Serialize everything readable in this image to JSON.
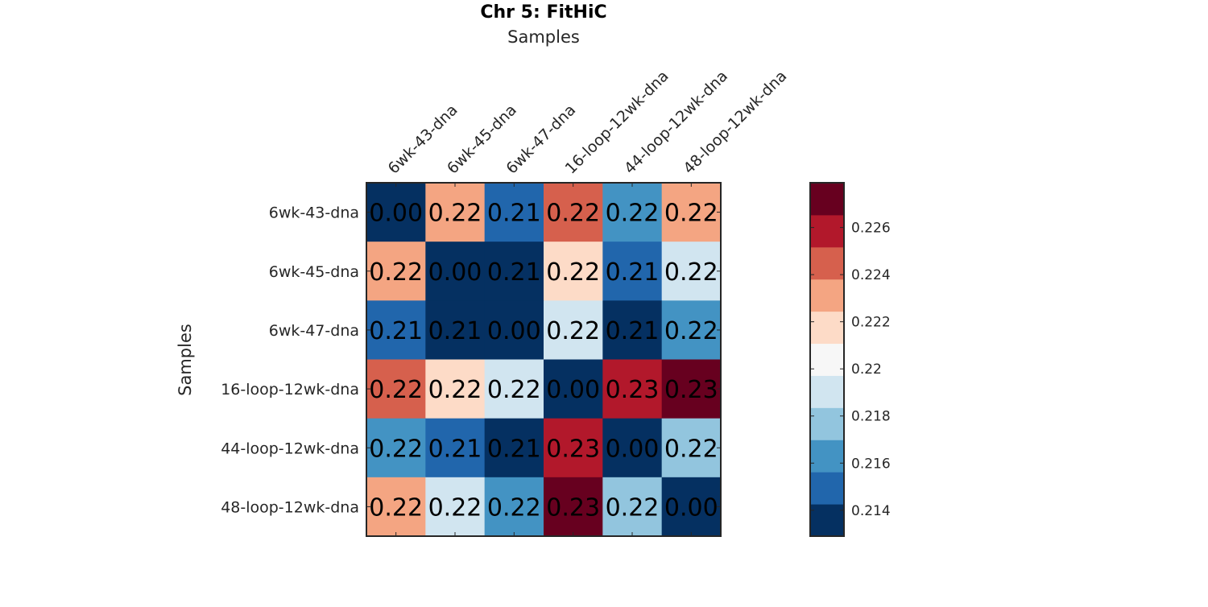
{
  "chart_data": {
    "type": "heatmap",
    "title": "Chr 5: FitHiC",
    "xlabel": "Samples",
    "ylabel": "Samples",
    "x_categories": [
      "6wk-43-dna",
      "6wk-45-dna",
      "6wk-47-dna",
      "16-loop-12wk-dna",
      "44-loop-12wk-dna",
      "48-loop-12wk-dna"
    ],
    "y_categories": [
      "6wk-43-dna",
      "6wk-45-dna",
      "6wk-47-dna",
      "16-loop-12wk-dna",
      "44-loop-12wk-dna",
      "48-loop-12wk-dna"
    ],
    "values": [
      [
        0.0,
        0.223,
        0.2146,
        0.2245,
        0.2162,
        0.2228
      ],
      [
        0.223,
        0.0,
        0.214,
        0.2212,
        0.2148,
        0.2185
      ],
      [
        0.2146,
        0.214,
        0.0,
        0.2186,
        0.214,
        0.2165
      ],
      [
        0.2245,
        0.2212,
        0.2186,
        0.0,
        0.2263,
        0.2275
      ],
      [
        0.2162,
        0.2148,
        0.214,
        0.2263,
        0.0,
        0.2176
      ],
      [
        0.2228,
        0.2185,
        0.2165,
        0.2275,
        0.2176,
        0.0
      ]
    ],
    "cell_labels": [
      [
        "0.00",
        "0.22",
        "0.21",
        "0.22",
        "0.22",
        "0.22"
      ],
      [
        "0.22",
        "0.00",
        "0.21",
        "0.22",
        "0.21",
        "0.22"
      ],
      [
        "0.21",
        "0.21",
        "0.00",
        "0.22",
        "0.21",
        "0.22"
      ],
      [
        "0.22",
        "0.22",
        "0.22",
        "0.00",
        "0.23",
        "0.23"
      ],
      [
        "0.22",
        "0.21",
        "0.21",
        "0.23",
        "0.00",
        "0.22"
      ],
      [
        "0.22",
        "0.22",
        "0.22",
        "0.23",
        "0.22",
        "0.00"
      ]
    ],
    "colorbar": {
      "range": [
        0.2129,
        0.2279
      ],
      "ticks": [
        0.214,
        0.216,
        0.218,
        0.22,
        0.222,
        0.224,
        0.226
      ],
      "tick_labels": [
        "0.214",
        "0.216",
        "0.218",
        "0.22",
        "0.222",
        "0.224",
        "0.226"
      ],
      "colors": [
        "#053061",
        "#2166ac",
        "#4393c3",
        "#92c5de",
        "#d1e5f0",
        "#f7f7f7",
        "#fddbc7",
        "#f4a582",
        "#d6604d",
        "#b2182b",
        "#67001f"
      ]
    },
    "grid": false,
    "legend": "colorbar-right"
  }
}
